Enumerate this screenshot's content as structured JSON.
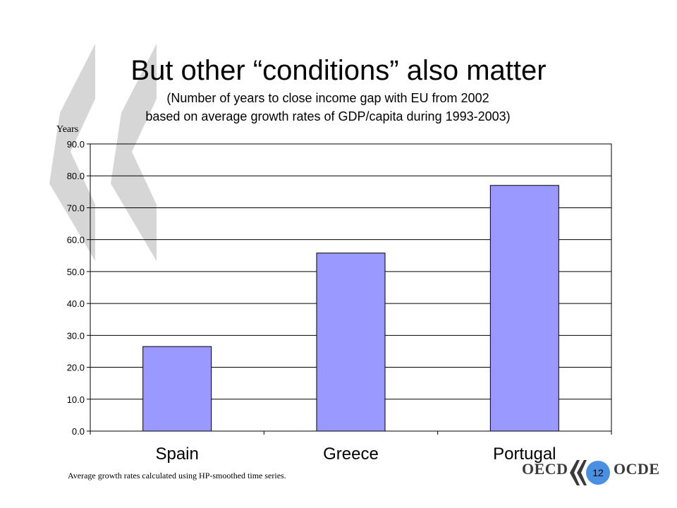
{
  "slide": {
    "title": "But other “conditions” also matter",
    "subtitle_line1": "(Number of years to close income gap with EU from 2002",
    "subtitle_line2": "based on average growth rates of GDP/capita during 1993-2003)",
    "footnote": "Average growth rates calculated using HP-smoothed time series.",
    "page_number": "12"
  },
  "logo": {
    "left_text": "OECD",
    "right_text": "OCDE",
    "chevron_icon": "double-chevron-left-icon"
  },
  "chart_data": {
    "type": "bar",
    "categories": [
      "Spain",
      "Greece",
      "Portugal"
    ],
    "values": [
      26.5,
      55.8,
      77.0
    ],
    "ylabel": "Years",
    "xlabel": "",
    "ylim": [
      0,
      90
    ],
    "yticks": [
      "0.0",
      "10.0",
      "20.0",
      "30.0",
      "40.0",
      "50.0",
      "60.0",
      "70.0",
      "80.0",
      "90.0"
    ],
    "grid": true,
    "legend": "none",
    "bar_color": "#9999ff"
  }
}
